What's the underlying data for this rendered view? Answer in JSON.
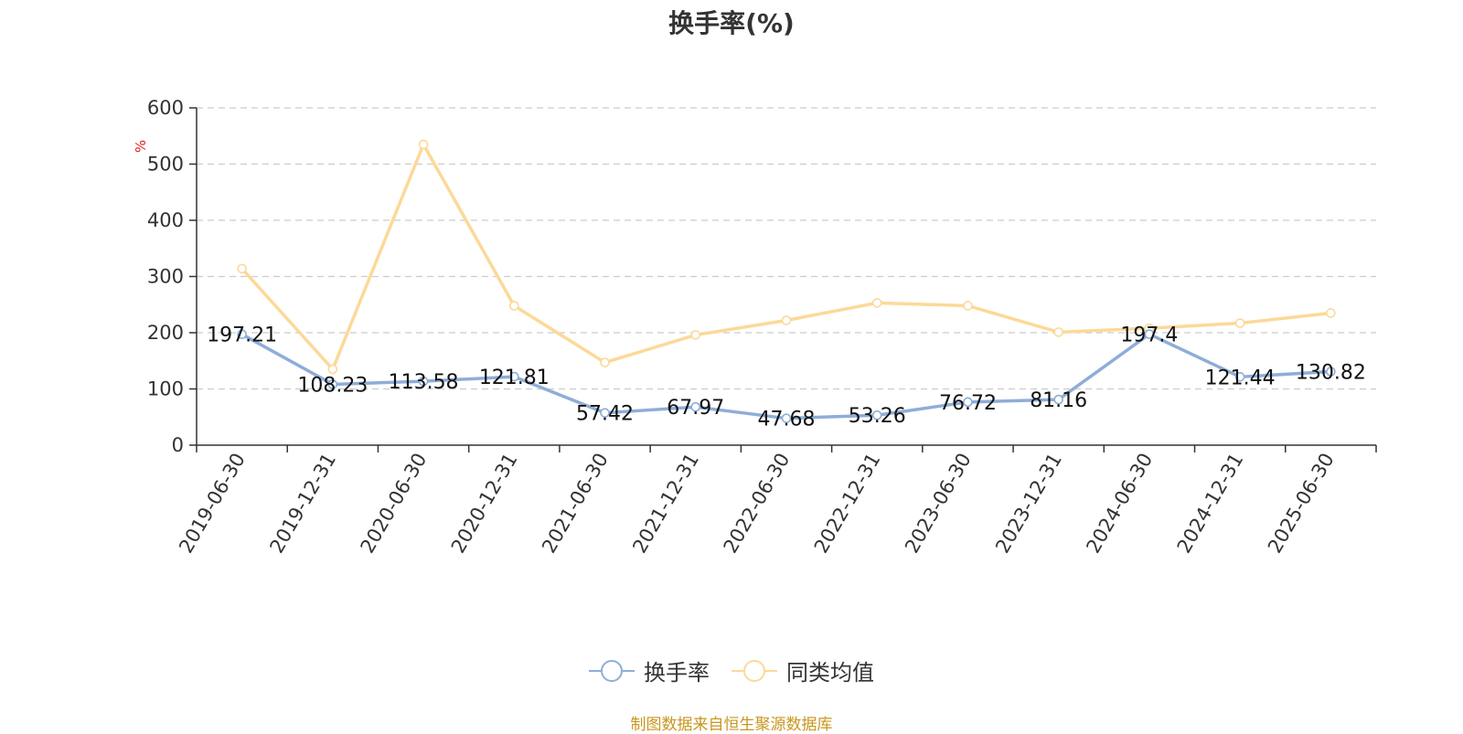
{
  "chart_data": {
    "type": "line",
    "title": "换手率(%)",
    "ylabel": "%",
    "ylim": [
      0,
      600
    ],
    "yticks": [
      0,
      100,
      200,
      300,
      400,
      500,
      600
    ],
    "grid": true,
    "legend_position": "bottom-center",
    "categories": [
      "2019-06-30",
      "2019-12-31",
      "2020-06-30",
      "2020-12-31",
      "2021-06-30",
      "2021-12-31",
      "2022-06-30",
      "2022-12-31",
      "2023-06-30",
      "2023-12-31",
      "2024-06-30",
      "2024-12-31",
      "2025-06-30"
    ],
    "series": [
      {
        "name": "换手率",
        "color": "#8eadd8",
        "values": [
          197.21,
          108.23,
          113.58,
          121.81,
          57.42,
          67.97,
          47.68,
          53.26,
          76.72,
          81.16,
          197.4,
          121.44,
          130.82
        ],
        "show_labels": true
      },
      {
        "name": "同类均值",
        "color": "#fcd998",
        "values": [
          314,
          135,
          535,
          248,
          147,
          196,
          222,
          253,
          248,
          201,
          208,
          217,
          235
        ],
        "show_labels": false
      }
    ]
  },
  "source_note": "制图数据来自恒生聚源数据库"
}
